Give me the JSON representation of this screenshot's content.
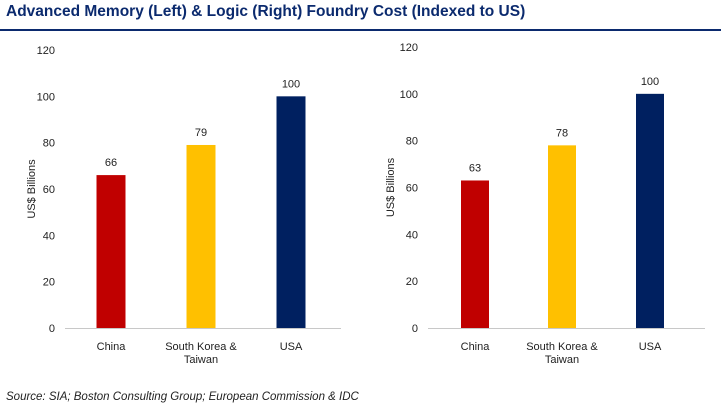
{
  "title": "Advanced Memory (Left) & Logic (Right) Foundry Cost (Indexed to US)",
  "source": "Source: SIA; Boston Consulting Group; European Commission & IDC",
  "chart_data": [
    {
      "type": "bar",
      "title": "",
      "xlabel": "",
      "ylabel": "US$ Billions",
      "categories": [
        [
          "China"
        ],
        [
          "South Korea &",
          "Taiwan"
        ],
        [
          "USA"
        ]
      ],
      "values": [
        66,
        79,
        100
      ],
      "data_labels": [
        "66",
        "79",
        "100"
      ],
      "colors": [
        "#c00000",
        "#ffc000",
        "#002060"
      ],
      "ylim": [
        0,
        120
      ],
      "yticks": [
        0,
        20,
        40,
        60,
        80,
        100,
        120
      ],
      "grid": false,
      "legend": "none"
    },
    {
      "type": "bar",
      "title": "",
      "xlabel": "",
      "ylabel": "US$ Billions",
      "categories": [
        [
          "China"
        ],
        [
          "South Korea &",
          "Taiwan"
        ],
        [
          "USA"
        ]
      ],
      "values": [
        63,
        78,
        100
      ],
      "data_labels": [
        "63",
        "78",
        "100"
      ],
      "colors": [
        "#c00000",
        "#ffc000",
        "#002060"
      ],
      "ylim": [
        0,
        120
      ],
      "yticks": [
        0,
        20,
        40,
        60,
        80,
        100,
        120
      ],
      "grid": false,
      "legend": "none"
    }
  ]
}
